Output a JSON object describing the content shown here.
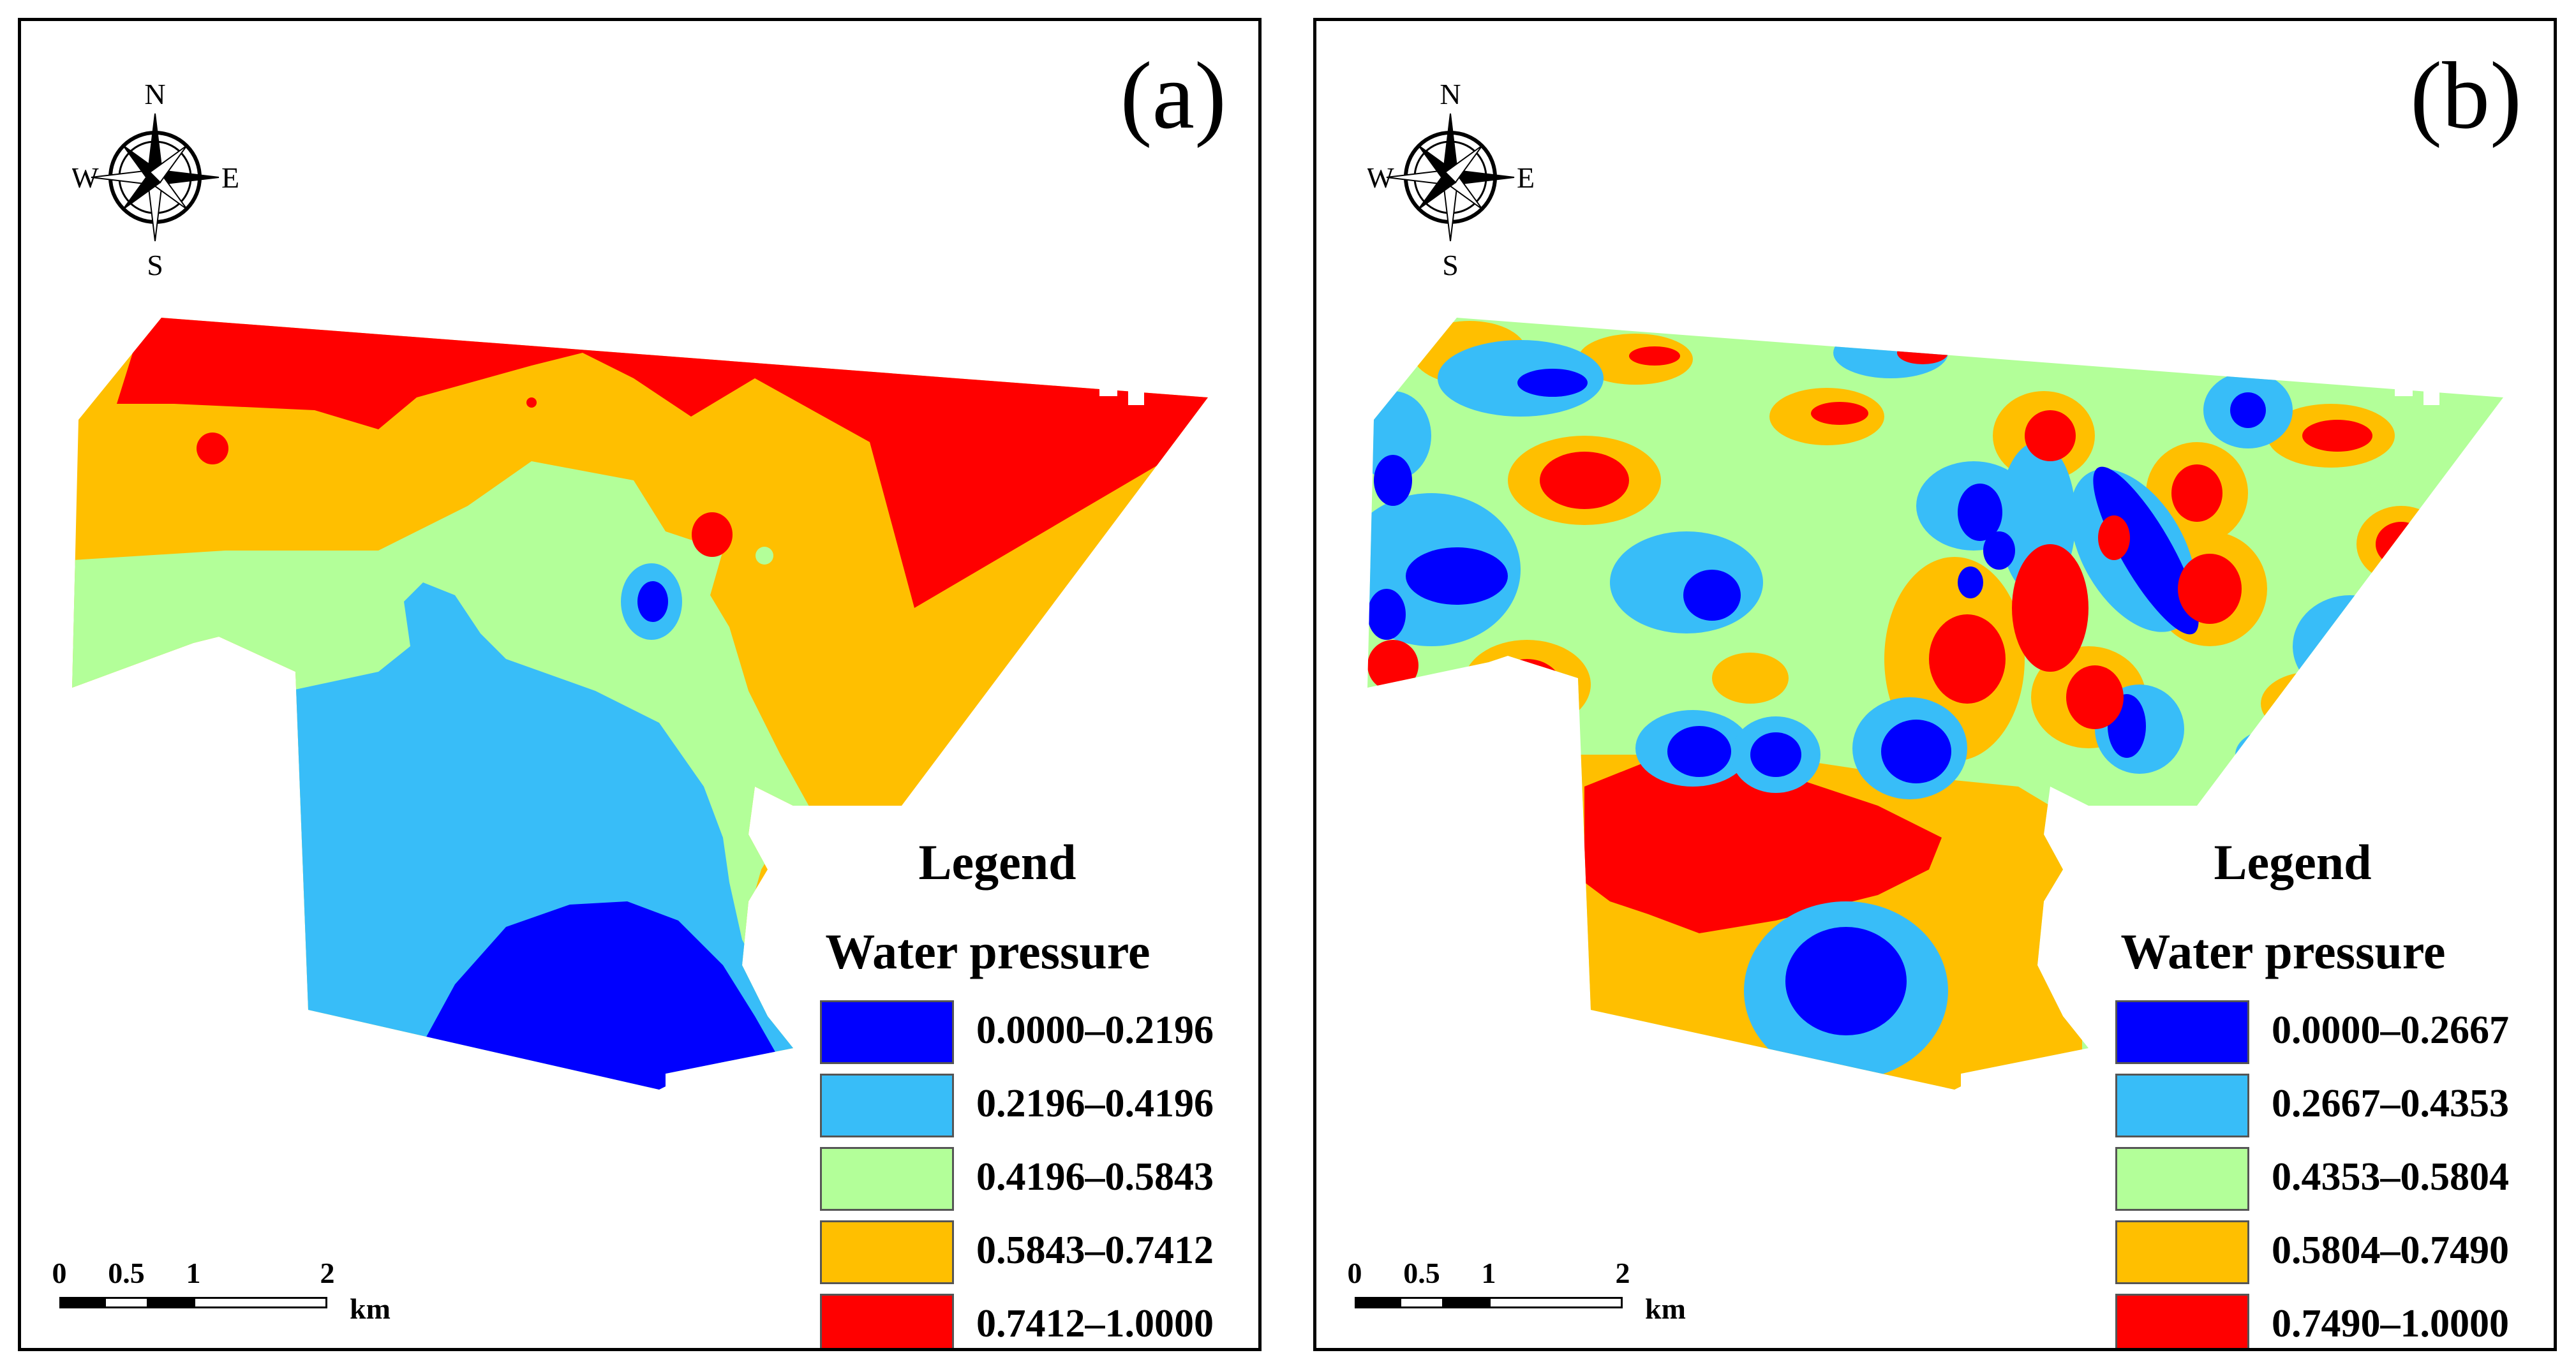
{
  "compass": {
    "north": "N",
    "south": "S",
    "east": "E",
    "west": "W"
  },
  "scale": {
    "ticks": [
      "0",
      "0.5",
      "1",
      "2"
    ],
    "unit": "km"
  },
  "panels": [
    {
      "label": "(a)",
      "legend": {
        "title": "Legend",
        "subtitle": "Water pressure",
        "classes": [
          {
            "range": "0.0000–0.2196",
            "color": "#0000ff"
          },
          {
            "range": "0.2196–0.4196",
            "color": "#38bdf8"
          },
          {
            "range": "0.4196–0.5843",
            "color": "#b3ff99"
          },
          {
            "range": "0.5843–0.7412",
            "color": "#ffbf00"
          },
          {
            "range": "0.7412–1.0000",
            "color": "#ff0000"
          }
        ]
      }
    },
    {
      "label": "(b)",
      "legend": {
        "title": "Legend",
        "subtitle": "Water pressure",
        "classes": [
          {
            "range": "0.0000–0.2667",
            "color": "#0000ff"
          },
          {
            "range": "0.2667–0.4353",
            "color": "#38bdf8"
          },
          {
            "range": "0.4353–0.5804",
            "color": "#b3ff99"
          },
          {
            "range": "0.5804–0.7490",
            "color": "#ffbf00"
          },
          {
            "range": "0.7490–1.0000",
            "color": "#ff0000"
          }
        ]
      }
    }
  ]
}
